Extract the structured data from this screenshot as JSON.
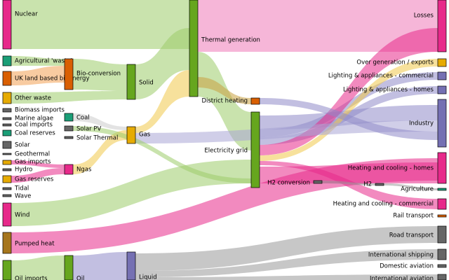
{
  "nodes": [
    {
      "label": "Nuclear",
      "color": "#e7298a"
    },
    {
      "label": "Agricultural 'waste'",
      "color": "#1b9e77"
    },
    {
      "label": "UK land based bioenergy",
      "color": "#d95f02"
    },
    {
      "label": "Other waste",
      "color": "#e6ab02"
    },
    {
      "label": "Biomass imports",
      "color": "#666666"
    },
    {
      "label": "Marine algae",
      "color": "#666666"
    },
    {
      "label": "Coal imports",
      "color": "#666666"
    },
    {
      "label": "Coal reserves",
      "color": "#1b9e77"
    },
    {
      "label": "Solar",
      "color": "#666666"
    },
    {
      "label": "Geothermal",
      "color": "#666666"
    },
    {
      "label": "Gas imports",
      "color": "#e6ab02"
    },
    {
      "label": "Hydro",
      "color": "#666666"
    },
    {
      "label": "Gas reserves",
      "color": "#e6ab02"
    },
    {
      "label": "Tidal",
      "color": "#666666"
    },
    {
      "label": "Wave",
      "color": "#666666"
    },
    {
      "label": "Wind",
      "color": "#e7298a"
    },
    {
      "label": "Pumped heat",
      "color": "#a6761d"
    },
    {
      "label": "Oil imports",
      "color": "#66a61e"
    },
    {
      "label": "Bio-conversion",
      "color": "#d95f02"
    },
    {
      "label": "Coal",
      "color": "#1b9e77"
    },
    {
      "label": "Solar PV",
      "color": "#666666"
    },
    {
      "label": "Solar Thermal",
      "color": "#666666"
    },
    {
      "label": "Ngas",
      "color": "#e7298a"
    },
    {
      "label": "Oil",
      "color": "#66a61e"
    },
    {
      "label": "Solid",
      "color": "#66a61e"
    },
    {
      "label": "Gas",
      "color": "#e6ab02"
    },
    {
      "label": "Liquid",
      "color": "#7570b3"
    },
    {
      "label": "Thermal generation",
      "color": "#66a61e"
    },
    {
      "label": "District heating",
      "color": "#d95f02"
    },
    {
      "label": "Electricity grid",
      "color": "#66a61e"
    },
    {
      "label": "H2 conversion",
      "color": "#666666"
    },
    {
      "label": "H2",
      "color": "#666666"
    },
    {
      "label": "Losses",
      "color": "#e7298a"
    },
    {
      "label": "Over generation / exports",
      "color": "#e6ab02"
    },
    {
      "label": "Lighting & appliances - commercial",
      "color": "#7570b3"
    },
    {
      "label": "Lighting & appliances - homes",
      "color": "#7570b3"
    },
    {
      "label": "Industry",
      "color": "#7570b3"
    },
    {
      "label": "Heating and cooling - homes",
      "color": "#e7298a"
    },
    {
      "label": "Agriculture",
      "color": "#1b9e77"
    },
    {
      "label": "Heating and cooling - commercial",
      "color": "#e7298a"
    },
    {
      "label": "Rail transport",
      "color": "#d95f02"
    },
    {
      "label": "Road transport",
      "color": "#666666"
    },
    {
      "label": "International shipping",
      "color": "#666666"
    },
    {
      "label": "Domestic aviation",
      "color": "#666666"
    },
    {
      "label": "International aviation",
      "color": "#666666"
    }
  ]
}
